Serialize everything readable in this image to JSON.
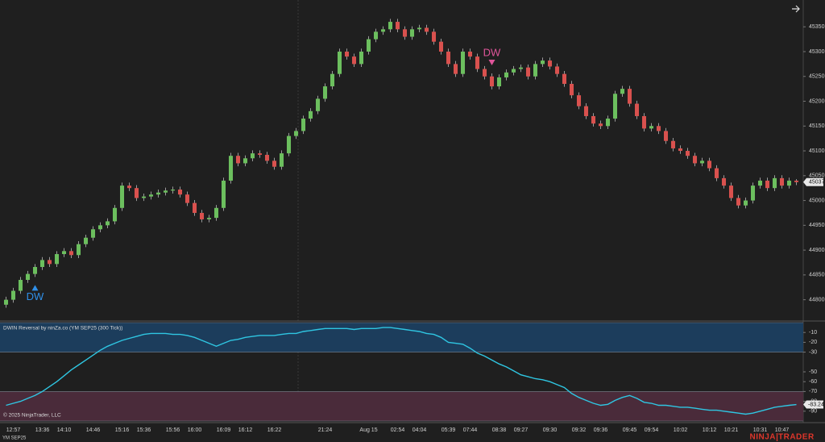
{
  "chart_data": [
    {
      "type": "candlestick",
      "categories": [
        null,
        "12:57",
        null,
        null,
        null,
        "13:36",
        null,
        null,
        "14:10",
        null,
        null,
        null,
        "14:46",
        null,
        null,
        null,
        "15:16",
        null,
        null,
        "15:36",
        null,
        null,
        null,
        "15:56",
        null,
        null,
        "16:00",
        null,
        null,
        null,
        "16:09",
        null,
        null,
        "16:12",
        null,
        null,
        null,
        "16:22",
        null,
        null,
        null,
        null,
        null,
        null,
        "21:24",
        null,
        null,
        null,
        null,
        null,
        "Aug 15",
        null,
        null,
        null,
        "02:54",
        null,
        null,
        "04:04",
        null,
        null,
        null,
        "05:39",
        null,
        null,
        "07:44",
        null,
        null,
        null,
        "08:38",
        null,
        null,
        "09:27",
        null,
        null,
        null,
        "09:30",
        null,
        null,
        null,
        "09:32",
        null,
        null,
        "09:36",
        null,
        null,
        null,
        "09:45",
        null,
        null,
        "09:54",
        null,
        null,
        null,
        "10:02",
        null,
        null,
        null,
        "10:12",
        null,
        null,
        "10:21",
        null,
        null,
        null,
        "10:31",
        null,
        null,
        "10:47",
        null,
        null
      ],
      "open": [
        44790,
        44800,
        44818,
        44840,
        44852,
        44866,
        44880,
        44872,
        44892,
        44898,
        44890,
        44912,
        44925,
        44942,
        44950,
        44958,
        44985,
        45030,
        45025,
        45005,
        45008,
        45012,
        45016,
        45020,
        45022,
        45012,
        44995,
        44975,
        44962,
        44965,
        44985,
        45040,
        45090,
        45075,
        45085,
        45095,
        45092,
        45080,
        45068,
        45095,
        45130,
        45140,
        45165,
        45180,
        45205,
        45230,
        45255,
        45300,
        45290,
        45275,
        45300,
        45325,
        45340,
        45345,
        45360,
        45345,
        45330,
        45345,
        45348,
        45340,
        45320,
        45300,
        45275,
        45255,
        45300,
        45290,
        45265,
        45250,
        45230,
        45248,
        45258,
        45265,
        45268,
        45250,
        45275,
        45282,
        45270,
        45255,
        45235,
        45212,
        45190,
        45170,
        45155,
        45150,
        45165,
        45215,
        45225,
        45195,
        45170,
        45145,
        45150,
        45140,
        45120,
        45105,
        45100,
        45090,
        45075,
        45080,
        45065,
        45045,
        45030,
        45005,
        44990,
        45000,
        45030,
        45040,
        45025,
        45045,
        45030,
        45040
      ],
      "high": [
        44806,
        44824,
        44846,
        44858,
        44872,
        44886,
        44886,
        44898,
        44904,
        44904,
        44918,
        44931,
        44948,
        44956,
        44964,
        44991,
        45036,
        45036,
        45031,
        45014,
        45018,
        45022,
        45026,
        45028,
        45028,
        45018,
        45001,
        44981,
        44971,
        44991,
        45046,
        45096,
        45096,
        45091,
        45101,
        45101,
        45098,
        45086,
        45101,
        45136,
        45146,
        45171,
        45186,
        45211,
        45236,
        45261,
        45306,
        45306,
        45296,
        45306,
        45331,
        45346,
        45351,
        45366,
        45366,
        45351,
        45351,
        45354,
        45354,
        45346,
        45326,
        45306,
        45281,
        45306,
        45306,
        45296,
        45271,
        45256,
        45254,
        45264,
        45271,
        45274,
        45274,
        45281,
        45288,
        45288,
        45276,
        45261,
        45241,
        45218,
        45196,
        45176,
        45161,
        45171,
        45221,
        45231,
        45231,
        45201,
        45176,
        45156,
        45156,
        45146,
        45126,
        45111,
        45106,
        45096,
        45086,
        45086,
        45071,
        45051,
        45036,
        45011,
        45006,
        45036,
        45046,
        45046,
        45051,
        45051,
        45046,
        45043
      ],
      "low": [
        44784,
        44794,
        44812,
        44834,
        44846,
        44860,
        44866,
        44866,
        44886,
        44884,
        44884,
        44906,
        44919,
        44936,
        44944,
        44952,
        44979,
        45019,
        44999,
        44999,
        45002,
        45006,
        45010,
        45014,
        45006,
        44989,
        44969,
        44956,
        44956,
        44959,
        44979,
        45034,
        45069,
        45069,
        45079,
        45086,
        45074,
        45062,
        45062,
        45089,
        45124,
        45134,
        45159,
        45174,
        45199,
        45224,
        45249,
        45284,
        45269,
        45269,
        45294,
        45319,
        45334,
        45339,
        45339,
        45324,
        45324,
        45339,
        45334,
        45314,
        45294,
        45269,
        45249,
        45249,
        45284,
        45259,
        45244,
        45224,
        45224,
        45242,
        45252,
        45259,
        45244,
        45244,
        45269,
        45264,
        45249,
        45229,
        45206,
        45184,
        45164,
        45149,
        45144,
        45144,
        45159,
        45209,
        45189,
        45164,
        45139,
        45139,
        45134,
        45114,
        45099,
        45094,
        45084,
        45069,
        45069,
        45059,
        45039,
        45024,
        44999,
        44984,
        44984,
        44994,
        45024,
        45019,
        45019,
        45024,
        45024,
        45031
      ],
      "close": [
        44800,
        44818,
        44840,
        44852,
        44866,
        44880,
        44872,
        44892,
        44898,
        44890,
        44912,
        44925,
        44942,
        44950,
        44958,
        44985,
        45030,
        45025,
        45005,
        45008,
        45012,
        45016,
        45020,
        45022,
        45012,
        44995,
        44975,
        44962,
        44965,
        44985,
        45040,
        45090,
        45075,
        45085,
        45095,
        45092,
        45080,
        45068,
        45095,
        45130,
        45140,
        45165,
        45180,
        45205,
        45230,
        45255,
        45300,
        45290,
        45275,
        45300,
        45325,
        45340,
        45345,
        45360,
        45345,
        45330,
        45345,
        45348,
        45340,
        45320,
        45300,
        45275,
        45255,
        45300,
        45290,
        45265,
        45250,
        45230,
        45248,
        45258,
        45265,
        45268,
        45250,
        45275,
        45282,
        45270,
        45255,
        45235,
        45212,
        45190,
        45170,
        45155,
        45150,
        45165,
        45215,
        45225,
        45195,
        45170,
        45145,
        45150,
        45140,
        45120,
        45105,
        45100,
        45090,
        45075,
        45080,
        45065,
        45045,
        45030,
        45005,
        44990,
        45000,
        45030,
        45040,
        45025,
        45045,
        45030,
        45040,
        45037
      ],
      "up_color": "#6cbf5e",
      "down_color": "#d9514e",
      "wick_color": "#9a9a9a",
      "ylim": [
        44762,
        45404
      ],
      "yticks": [
        44800,
        44850,
        44900,
        44950,
        45000,
        45050,
        45100,
        45150,
        45200,
        45250,
        45300,
        45350
      ],
      "signals": [
        {
          "index": 4,
          "label": "DW",
          "direction": "up",
          "color": "#2f8fe8"
        },
        {
          "index": 67,
          "label": "DW",
          "direction": "down",
          "color": "#e0559a"
        }
      ]
    },
    {
      "type": "line",
      "title": "DWIN Reversal by ninZa.co (YM SEP25 (300 Tick))",
      "values": [
        -84,
        -82,
        -80,
        -77,
        -74,
        -70,
        -65,
        -60,
        -54,
        -48,
        -43,
        -38,
        -33,
        -28,
        -24,
        -21,
        -18,
        -16,
        -14,
        -12,
        -11,
        -11,
        -11,
        -12,
        -12,
        -13,
        -15,
        -18,
        -21,
        -24,
        -21,
        -18,
        -17,
        -15,
        -14,
        -13,
        -13,
        -13,
        -12,
        -11,
        -11,
        -9,
        -8,
        -7,
        -6,
        -6,
        -6,
        -6,
        -7,
        -6,
        -6,
        -6,
        -5,
        -5,
        -6,
        -7,
        -8,
        -9,
        -11,
        -12,
        -15,
        -20,
        -21,
        -22,
        -26,
        -31,
        -34,
        -38,
        -42,
        -45,
        -49,
        -53,
        -55,
        -57,
        -58,
        -60,
        -63,
        -66,
        -72,
        -76,
        -79,
        -82,
        -84,
        -83,
        -79,
        -76,
        -74,
        -77,
        -81,
        -82,
        -84,
        -84,
        -85,
        -86,
        -86,
        -87,
        -88,
        -89,
        -89,
        -90,
        -91,
        -92,
        -93,
        -92,
        -90,
        -88,
        -86,
        -85,
        -84,
        -83.24
      ],
      "color": "#2fc6e2",
      "ylim": [
        -100,
        0
      ],
      "yticks": [
        -10,
        -20,
        -30,
        -50,
        -60,
        -70,
        -80,
        -90
      ],
      "zones": [
        {
          "from": 0,
          "to": -30,
          "color": "#1c3d5c"
        },
        {
          "from": -70,
          "to": -100,
          "color": "#4a2b3a"
        }
      ]
    }
  ],
  "copyright": "© 2025 NinjaTrader, LLC",
  "symbol": "YM SEP25",
  "logo": [
    "NINJA",
    "TRADER"
  ]
}
